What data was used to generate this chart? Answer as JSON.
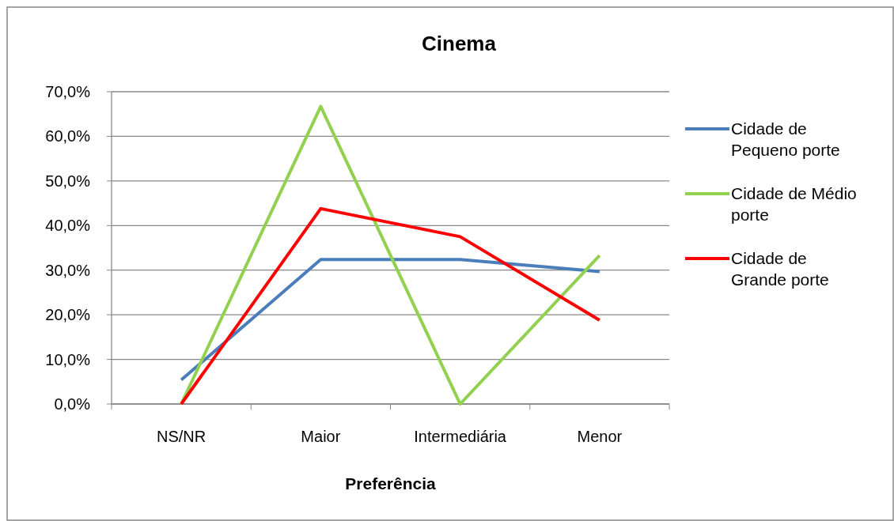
{
  "chart_data": {
    "type": "line",
    "title": "Cinema",
    "xlabel": "Preferência",
    "categories": [
      "NS/NR",
      "Maior",
      "Intermediária",
      "Menor"
    ],
    "series": [
      {
        "name": "Cidade de Pequeno porte",
        "color": "#4a7ebb",
        "values": [
          5.4,
          32.4,
          32.4,
          29.7
        ]
      },
      {
        "name": "Cidade de Médio porte",
        "color": "#92d050",
        "values": [
          0,
          66.7,
          0,
          33.3
        ]
      },
      {
        "name": "Cidade de Grande porte",
        "color": "#ff0000",
        "values": [
          0,
          43.8,
          37.5,
          18.8
        ]
      }
    ],
    "ylim": [
      0,
      70
    ],
    "yticks": [
      {
        "value": 0,
        "label": "0,0%"
      },
      {
        "value": 10,
        "label": "10,0%"
      },
      {
        "value": 20,
        "label": "20,0%"
      },
      {
        "value": 30,
        "label": "30,0%"
      },
      {
        "value": 40,
        "label": "40,0%"
      },
      {
        "value": 50,
        "label": "50,0%"
      },
      {
        "value": 60,
        "label": "60,0%"
      },
      {
        "value": 70,
        "label": "70,0%"
      }
    ],
    "grid": "y",
    "legend": "right",
    "marker": "none",
    "line_style": "solid"
  }
}
